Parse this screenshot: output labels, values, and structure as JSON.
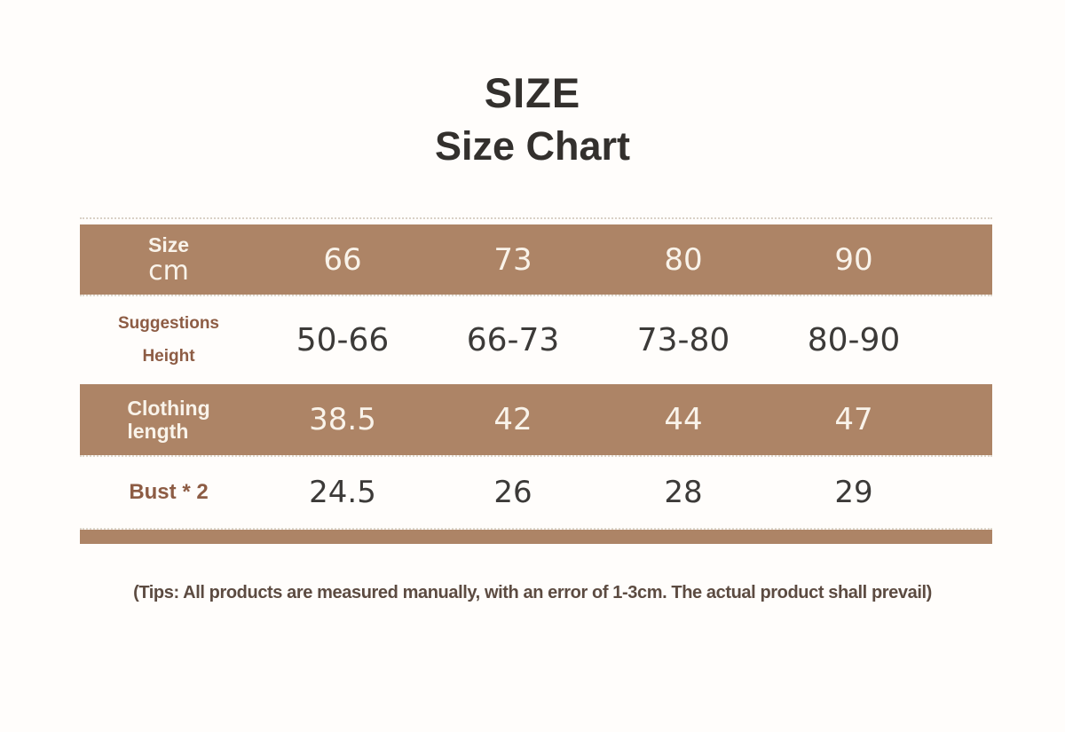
{
  "title": {
    "line1": "SIZE",
    "line2": "Size Chart"
  },
  "table": {
    "rows": [
      {
        "label1": "Size",
        "label2": "cm",
        "values": [
          "66",
          "73",
          "80",
          "90"
        ]
      },
      {
        "label1": "Suggestions",
        "label2": "Height",
        "values": [
          "50-66",
          "66-73",
          "73-80",
          "80-90"
        ]
      },
      {
        "label1": "Clothing",
        "label2": "length",
        "values": [
          "38.5",
          "42",
          "44",
          "47"
        ]
      },
      {
        "label1": "Bust * 2",
        "label2": "",
        "values": [
          "24.5",
          "26",
          "28",
          "29"
        ]
      }
    ]
  },
  "footer": {
    "tips": "(Tips: All products are measured manually, with an error of 1-3cm. The actual product shall prevail)"
  },
  "colors": {
    "bar_brown": "#ad8466",
    "label_brown": "#8d5c44",
    "value_dark": "#3c3a38",
    "text_cream": "#f9f3ea",
    "title_dark": "#33302d",
    "tips_brown_gray": "#5c4b41"
  }
}
